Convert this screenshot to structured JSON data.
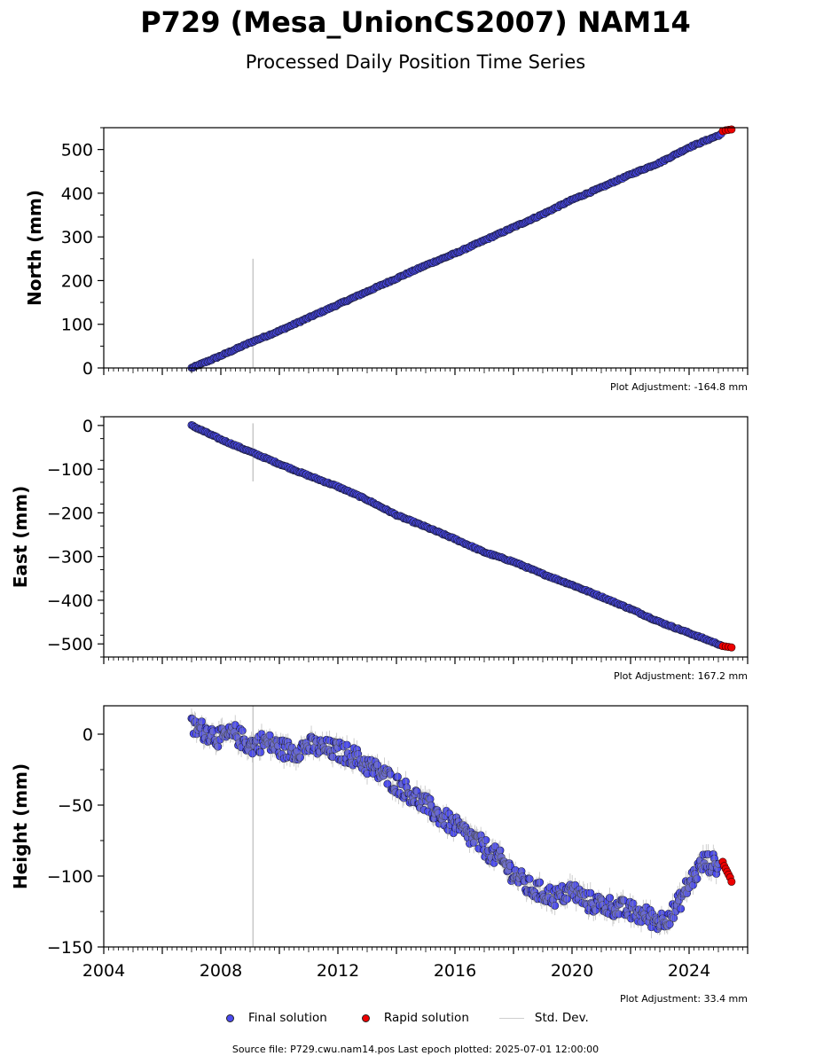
{
  "title": "P729 (Mesa_UnionCS2007) NAM14",
  "subtitle": "Processed Daily Position Time Series",
  "legend": {
    "final": "Final solution",
    "rapid": "Rapid solution",
    "std": "Std. Dev."
  },
  "footer": "Source file: P729.cwu.nam14.pos  Last epoch plotted: 2025-07-01 12:00:00",
  "colors": {
    "final": "#4b4bf0",
    "rapid": "#ee0000",
    "stddev": "#c8c8c8",
    "edge": "#1a1a33"
  },
  "chart_data": [
    {
      "type": "scatter",
      "ylabel": "North (mm)",
      "adjustment": "Plot Adjustment: -164.8 mm",
      "xlim": [
        2004.0,
        2026.0
      ],
      "ylim": [
        0,
        550
      ],
      "yticks": [
        0,
        100,
        200,
        300,
        400,
        500
      ],
      "ytick_labels": [
        "0",
        "100",
        "200",
        "300",
        "400",
        "500"
      ],
      "xtick_labels_shown": false,
      "series": [
        {
          "name": "Final solution",
          "x": [
            2007.0,
            2008.0,
            2009.0,
            2010.0,
            2011.0,
            2012.0,
            2013.0,
            2014.0,
            2015.0,
            2016.0,
            2017.0,
            2018.0,
            2019.0,
            2020.0,
            2021.0,
            2022.0,
            2023.0,
            2024.0,
            2025.1
          ],
          "y": [
            0,
            28,
            58,
            85,
            115,
            145,
            175,
            205,
            235,
            262,
            292,
            322,
            352,
            385,
            413,
            443,
            470,
            505,
            535
          ]
        },
        {
          "name": "Rapid solution",
          "x": [
            2025.15,
            2025.25,
            2025.35,
            2025.45
          ],
          "y": [
            542,
            544,
            545,
            546
          ]
        }
      ],
      "stddev_spike": {
        "x": 2009.1,
        "y_range": [
          0,
          250
        ]
      }
    },
    {
      "type": "scatter",
      "ylabel": "East (mm)",
      "adjustment": "Plot Adjustment: 167.2 mm",
      "xlim": [
        2004.0,
        2026.0
      ],
      "ylim": [
        -530,
        20
      ],
      "yticks": [
        0,
        -100,
        -200,
        -300,
        -400,
        -500
      ],
      "ytick_labels": [
        "0",
        "−100",
        "−200",
        "−300",
        "−400",
        "−500"
      ],
      "xtick_labels_shown": false,
      "series": [
        {
          "name": "Final solution",
          "x": [
            2007.0,
            2008.0,
            2009.0,
            2010.0,
            2011.0,
            2012.0,
            2013.0,
            2014.0,
            2015.0,
            2016.0,
            2017.0,
            2018.0,
            2019.0,
            2020.0,
            2021.0,
            2022.0,
            2023.0,
            2024.0,
            2025.1
          ],
          "y": [
            0,
            -32,
            -60,
            -88,
            -115,
            -140,
            -170,
            -205,
            -232,
            -260,
            -290,
            -312,
            -340,
            -365,
            -392,
            -420,
            -450,
            -475,
            -503
          ]
        },
        {
          "name": "Rapid solution",
          "x": [
            2025.15,
            2025.25,
            2025.35,
            2025.45
          ],
          "y": [
            -505,
            -506,
            -507,
            -508
          ]
        }
      ],
      "stddev_spike": {
        "x": 2009.1,
        "y_range": [
          -128,
          5
        ]
      }
    },
    {
      "type": "scatter",
      "ylabel": "Height (mm)",
      "adjustment": "Plot Adjustment: 33.4 mm",
      "xlim": [
        2004.0,
        2026.0
      ],
      "ylim": [
        -150,
        20
      ],
      "yticks": [
        0,
        -50,
        -100,
        -150
      ],
      "ytick_labels": [
        "0",
        "−50",
        "−100",
        "−150"
      ],
      "xticks": [
        2004,
        2008,
        2012,
        2016,
        2020,
        2024
      ],
      "xtick_labels": [
        "2004",
        "2008",
        "2012",
        "2016",
        "2020",
        "2024"
      ],
      "xtick_labels_shown": true,
      "series": [
        {
          "name": "Final solution",
          "x": [
            2007.0,
            2007.5,
            2008.0,
            2008.5,
            2009.0,
            2009.5,
            2010.0,
            2010.5,
            2011.0,
            2011.5,
            2012.0,
            2012.5,
            2013.0,
            2013.5,
            2014.0,
            2014.5,
            2015.0,
            2015.5,
            2016.0,
            2016.5,
            2017.0,
            2017.5,
            2018.0,
            2018.5,
            2019.0,
            2019.5,
            2020.0,
            2020.5,
            2021.0,
            2021.5,
            2022.0,
            2022.5,
            2023.0,
            2023.5,
            2024.0,
            2024.5,
            2025.0
          ],
          "y": [
            5,
            2,
            -3,
            0,
            -8,
            -5,
            -10,
            -12,
            -8,
            -10,
            -12,
            -15,
            -22,
            -28,
            -35,
            -42,
            -50,
            -58,
            -65,
            -72,
            -80,
            -88,
            -98,
            -108,
            -112,
            -115,
            -110,
            -118,
            -120,
            -122,
            -125,
            -128,
            -132,
            -125,
            -105,
            -90,
            -92
          ]
        },
        {
          "name": "Rapid solution",
          "x": [
            2025.15,
            2025.2,
            2025.25,
            2025.3,
            2025.35,
            2025.4,
            2025.45
          ],
          "y": [
            -90,
            -93,
            -95,
            -97,
            -99,
            -101,
            -104
          ]
        }
      ],
      "stddev_spike": {
        "x": 2009.1,
        "y_range": [
          -150,
          20
        ]
      }
    }
  ]
}
